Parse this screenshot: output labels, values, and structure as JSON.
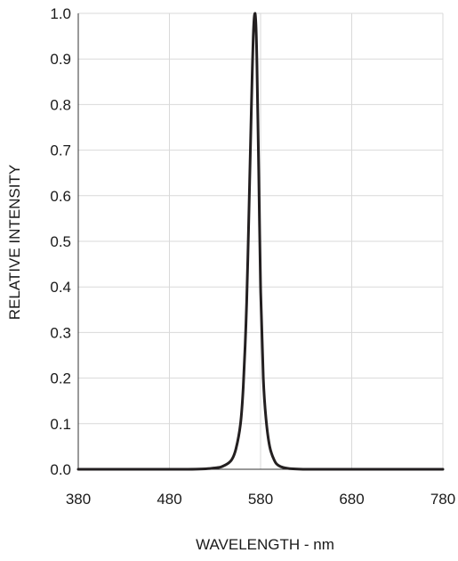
{
  "chart_data": {
    "type": "line",
    "title": "",
    "xlabel": "WAVELENGTH - nm",
    "ylabel": "RELATIVE INTENSITY",
    "xlim": [
      380,
      780
    ],
    "ylim": [
      0.0,
      1.0
    ],
    "x_ticks": [
      "380",
      "480",
      "580",
      "680",
      "780"
    ],
    "y_ticks": [
      "0.0",
      "0.1",
      "0.2",
      "0.3",
      "0.4",
      "0.5",
      "0.6",
      "0.7",
      "0.8",
      "0.9",
      "1.0"
    ],
    "grid": true,
    "legend": "none",
    "series": [
      {
        "color": "#231f20",
        "x": [
          380,
          500,
          530,
          540,
          548,
          553,
          558,
          561,
          564,
          566,
          568,
          570,
          571,
          572,
          573,
          574,
          575,
          576,
          578,
          580,
          583,
          586,
          590,
          595,
          600,
          610,
          630,
          680,
          780
        ],
        "y": [
          0.0,
          0.0,
          0.003,
          0.008,
          0.02,
          0.045,
          0.1,
          0.18,
          0.32,
          0.46,
          0.63,
          0.8,
          0.88,
          0.95,
          0.99,
          1.0,
          0.97,
          0.89,
          0.65,
          0.4,
          0.2,
          0.11,
          0.05,
          0.02,
          0.008,
          0.002,
          0.0,
          0.0,
          0.0
        ]
      }
    ]
  }
}
